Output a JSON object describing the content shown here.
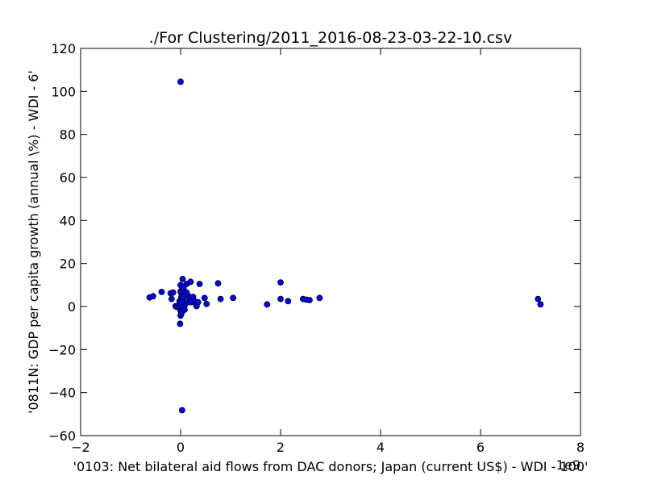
{
  "chart_data": {
    "type": "scatter",
    "title": "./For Clustering/2011_2016-08-23-03-22-10.csv",
    "xlabel": "'0103: Net bilateral aid flows from DAC donors; Japan  (current US$) - WDI - 100'",
    "ylabel": "'0811N: GDP per capita growth  (annual \\%) - WDI - 6'",
    "x_offset_label": "1e9",
    "xlim": [
      -2,
      8
    ],
    "ylim": [
      -60,
      120
    ],
    "x_ticks": [
      "−2",
      "0",
      "2",
      "4",
      "6",
      "8"
    ],
    "y_ticks": [
      "−60",
      "−40",
      "−20",
      "0",
      "20",
      "40",
      "60",
      "80",
      "100",
      "120"
    ],
    "grid": false,
    "marker_color": "#0000ff",
    "series": [
      {
        "points": [
          [
            0.0,
            104.5
          ],
          [
            0.03,
            -48.2
          ],
          [
            -0.62,
            4.2
          ],
          [
            -0.55,
            4.8
          ],
          [
            -0.38,
            6.8
          ],
          [
            -0.2,
            6.2
          ],
          [
            -0.15,
            6.5
          ],
          [
            -0.18,
            3.5
          ],
          [
            -0.1,
            0.2
          ],
          [
            -0.08,
            -0.2
          ],
          [
            -0.03,
            0.5
          ],
          [
            -0.01,
            1.8
          ],
          [
            -0.02,
            2.5
          ],
          [
            0.0,
            -2.0
          ],
          [
            -0.01,
            -8.0
          ],
          [
            0.0,
            -4.2
          ],
          [
            0.02,
            -3.0
          ],
          [
            0.03,
            -1.0
          ],
          [
            0.0,
            0.3
          ],
          [
            0.01,
            4.0
          ],
          [
            0.02,
            5.5
          ],
          [
            0.0,
            7.0
          ],
          [
            0.03,
            9.0
          ],
          [
            0.0,
            10.0
          ],
          [
            0.04,
            12.8
          ],
          [
            0.06,
            8.5
          ],
          [
            0.05,
            3.0
          ],
          [
            0.07,
            2.0
          ],
          [
            0.08,
            -1.5
          ],
          [
            0.1,
            1.5
          ],
          [
            0.1,
            6.0
          ],
          [
            0.12,
            10.5
          ],
          [
            0.15,
            5.0
          ],
          [
            0.18,
            3.5
          ],
          [
            0.2,
            11.5
          ],
          [
            0.2,
            2.0
          ],
          [
            0.25,
            4.5
          ],
          [
            0.28,
            2.5
          ],
          [
            0.3,
            1.2
          ],
          [
            0.32,
            0.2
          ],
          [
            0.35,
            2.0
          ],
          [
            0.38,
            10.5
          ],
          [
            0.48,
            4.0
          ],
          [
            0.52,
            1.2
          ],
          [
            0.08,
            0.5
          ],
          [
            0.12,
            6.5
          ],
          [
            0.02,
            2.0
          ],
          [
            0.06,
            4.5
          ],
          [
            0.75,
            10.8
          ],
          [
            0.8,
            3.5
          ],
          [
            1.05,
            4.0
          ],
          [
            1.73,
            1.0
          ],
          [
            2.0,
            11.2
          ],
          [
            2.0,
            3.5
          ],
          [
            2.15,
            2.5
          ],
          [
            2.45,
            3.5
          ],
          [
            2.52,
            3.2
          ],
          [
            2.58,
            3.0
          ],
          [
            2.78,
            4.0
          ],
          [
            7.15,
            3.5
          ],
          [
            7.2,
            1.0
          ]
        ]
      }
    ]
  }
}
